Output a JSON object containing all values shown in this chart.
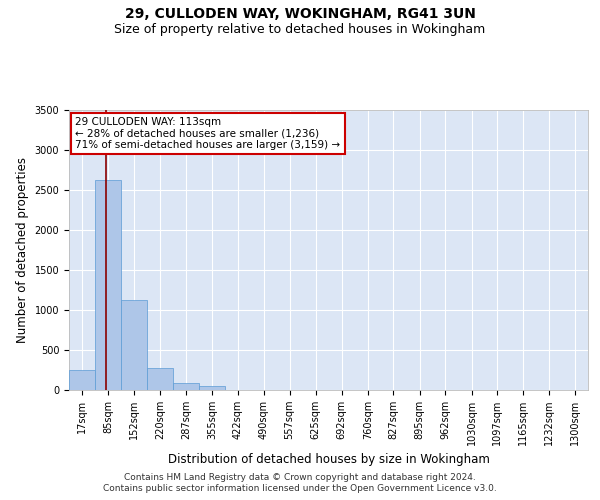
{
  "title": "29, CULLODEN WAY, WOKINGHAM, RG41 3UN",
  "subtitle": "Size of property relative to detached houses in Wokingham",
  "xlabel": "Distribution of detached houses by size in Wokingham",
  "ylabel": "Number of detached properties",
  "footer_line1": "Contains HM Land Registry data © Crown copyright and database right 2024.",
  "footer_line2": "Contains public sector information licensed under the Open Government Licence v3.0.",
  "annotation_line1": "29 CULLODEN WAY: 113sqm",
  "annotation_line2": "← 28% of detached houses are smaller (1,236)",
  "annotation_line3": "71% of semi-detached houses are larger (3,159) →",
  "property_size": 113,
  "bar_edges": [
    17,
    85,
    152,
    220,
    287,
    355,
    422,
    490,
    557,
    625,
    692,
    760,
    827,
    895,
    962,
    1030,
    1097,
    1165,
    1232,
    1300,
    1367
  ],
  "bar_heights": [
    250,
    2630,
    1120,
    270,
    90,
    50,
    0,
    0,
    0,
    0,
    0,
    0,
    0,
    0,
    0,
    0,
    0,
    0,
    0,
    0
  ],
  "bar_color": "#aec6e8",
  "bar_edge_color": "#5b9bd5",
  "vline_color": "#8b0000",
  "vline_x": 113,
  "ylim": [
    0,
    3500
  ],
  "yticks": [
    0,
    500,
    1000,
    1500,
    2000,
    2500,
    3000,
    3500
  ],
  "background_color": "#ffffff",
  "plot_bg_color": "#dce6f5",
  "grid_color": "#ffffff",
  "annotation_box_color": "#ffffff",
  "annotation_box_edge": "#cc0000",
  "title_fontsize": 10,
  "subtitle_fontsize": 9,
  "xlabel_fontsize": 8.5,
  "ylabel_fontsize": 8.5,
  "tick_fontsize": 7,
  "annotation_fontsize": 7.5,
  "footer_fontsize": 6.5
}
